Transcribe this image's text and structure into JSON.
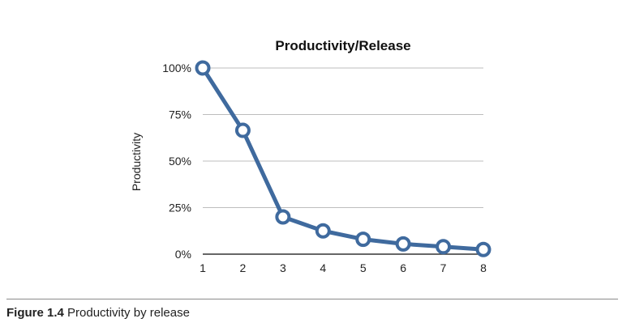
{
  "chart_data": {
    "type": "line",
    "title": "Productivity/Release",
    "xlabel": "",
    "ylabel": "Productivity",
    "categories": [
      "1",
      "2",
      "3",
      "4",
      "5",
      "6",
      "7",
      "8"
    ],
    "series": [
      {
        "values": [
          100,
          66.5,
          20,
          12.5,
          8,
          5.5,
          4,
          2.5
        ]
      }
    ],
    "ylim": [
      0,
      100
    ],
    "yticks": [
      0,
      25,
      50,
      75,
      100
    ],
    "ytick_labels": [
      "0%",
      "25%",
      "50%",
      "75%",
      "100%"
    ],
    "grid": true,
    "color": "#3f6a9e"
  },
  "caption": {
    "label": "Figure 1.4",
    "text": "Productivity by release"
  }
}
